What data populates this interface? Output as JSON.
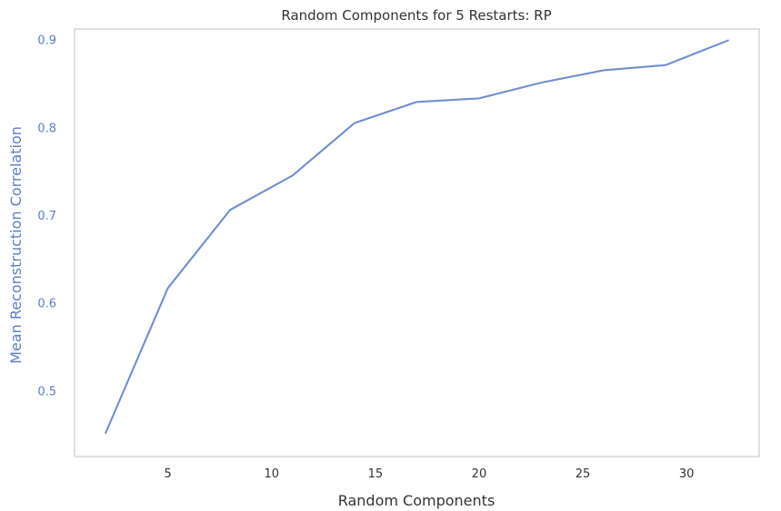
{
  "chart_data": {
    "type": "line",
    "title": "Random Components for 5 Restarts: RP",
    "xlabel": "Random Components",
    "ylabel": "Mean Reconstruction Correlation",
    "x": [
      2,
      5,
      8,
      11,
      14,
      17,
      20,
      23,
      26,
      29,
      32
    ],
    "series": [
      {
        "values": [
          0.452,
          0.617,
          0.706,
          0.745,
          0.805,
          0.829,
          0.833,
          0.851,
          0.865,
          0.871,
          0.899
        ]
      }
    ],
    "xlim": [
      0.5,
      33.5
    ],
    "ylim": [
      0.425,
      0.912
    ],
    "x_ticks": [
      5,
      10,
      15,
      20,
      25,
      30
    ],
    "x_tick_labels": [
      "5",
      "10",
      "15",
      "20",
      "25",
      "30"
    ],
    "y_ticks": [
      0.5,
      0.6,
      0.7,
      0.8,
      0.9
    ],
    "y_tick_labels": [
      "0.5",
      "0.6",
      "0.7",
      "0.8",
      "0.9"
    ],
    "grid": false,
    "colors": {
      "line": "#6f8fcf",
      "ylabel": "#5c7fc2",
      "yticks": "#5c7fc2",
      "text": "#333333",
      "axes_frame": "#cccccc"
    }
  }
}
